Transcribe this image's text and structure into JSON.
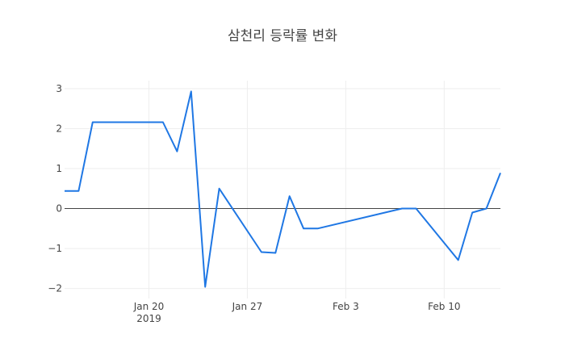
{
  "chart_data": {
    "type": "line",
    "title": "삼천리 등락률 변화",
    "xlabel": "",
    "ylabel": "",
    "x_range": [
      "2019-01-14",
      "2019-02-14"
    ],
    "ylim": [
      -2.25,
      3.2
    ],
    "grid": true,
    "legend": "none",
    "y_ticks": [
      -2,
      -1,
      0,
      1,
      2,
      3
    ],
    "y_tick_labels": [
      "−2",
      "−1",
      "0",
      "1",
      "2",
      "3"
    ],
    "x_ticks": [
      {
        "date": "2019-01-20",
        "label": "Jan 20",
        "sublabel": "2019"
      },
      {
        "date": "2019-01-27",
        "label": "Jan 27",
        "sublabel": ""
      },
      {
        "date": "2019-02-03",
        "label": "Feb 3",
        "sublabel": ""
      },
      {
        "date": "2019-02-10",
        "label": "Feb 10",
        "sublabel": ""
      }
    ],
    "series": [
      {
        "color": "#1f77e4",
        "x": [
          "2019-01-14",
          "2019-01-15",
          "2019-01-16",
          "2019-01-17",
          "2019-01-18",
          "2019-01-21",
          "2019-01-22",
          "2019-01-23",
          "2019-01-24",
          "2019-01-25",
          "2019-01-28",
          "2019-01-29",
          "2019-01-30",
          "2019-01-31",
          "2019-02-01",
          "2019-02-07",
          "2019-02-08",
          "2019-02-11",
          "2019-02-12",
          "2019-02-13",
          "2019-02-14"
        ],
        "values": [
          0.44,
          0.44,
          2.16,
          2.16,
          2.16,
          2.16,
          1.43,
          2.93,
          -1.96,
          0.5,
          -1.09,
          -1.11,
          0.31,
          -0.5,
          -0.5,
          0.0,
          0.0,
          -1.29,
          -0.1,
          0.0,
          0.89
        ]
      }
    ]
  }
}
